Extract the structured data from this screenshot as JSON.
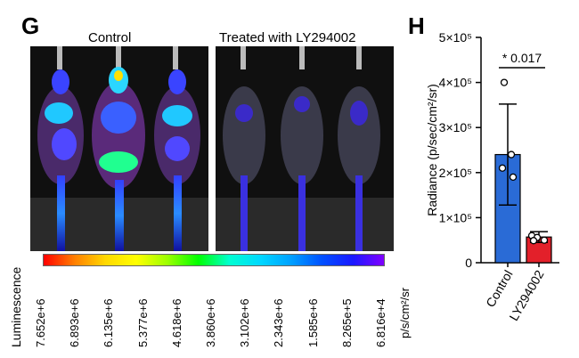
{
  "panel_g": {
    "letter": "G",
    "groups": [
      "Control",
      "Treated with LY294002"
    ],
    "colorbar": {
      "label": "Luminescence",
      "ticks": [
        "7.652e+6",
        "6.893e+6",
        "6.135e+6",
        "5.377e+6",
        "4.618e+6",
        "3.860e+6",
        "3.102e+6",
        "2.343e+6",
        "1.585e+6",
        "8.265e+5",
        "6.816e+4"
      ],
      "unit": "p/s/cm²/sr"
    }
  },
  "panel_h": {
    "letter": "H"
  },
  "chart_data": {
    "type": "bar",
    "categories": [
      "Control",
      "LY294002"
    ],
    "values": [
      240000,
      57000
    ],
    "errors": [
      112000,
      12000
    ],
    "points": [
      [
        400000,
        240000,
        210000,
        190000
      ],
      [
        60000,
        56000,
        50000,
        49000
      ]
    ],
    "bar_colors": [
      "#2a6bd6",
      "#e3202a"
    ],
    "ylabel": "Radiance (p/sec/cm²/sr)",
    "ylim": [
      0,
      500000
    ],
    "yticks": [
      {
        "value": 0,
        "label": "0"
      },
      {
        "value": 100000,
        "label": "1×10⁵"
      },
      {
        "value": 200000,
        "label": "2×10⁵"
      },
      {
        "value": 300000,
        "label": "3×10⁵"
      },
      {
        "value": 400000,
        "label": "4×10⁵"
      },
      {
        "value": 500000,
        "label": "5×10⁵"
      }
    ],
    "annotation": "* 0.017"
  }
}
